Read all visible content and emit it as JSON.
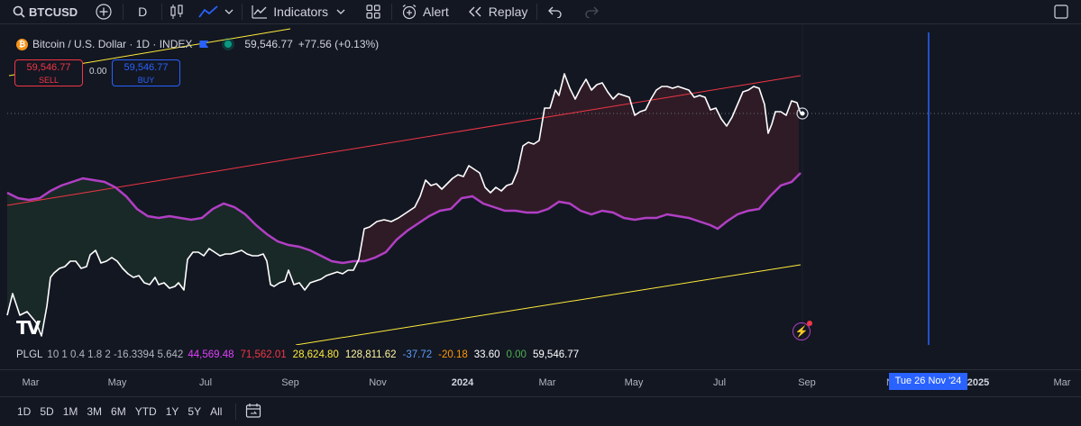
{
  "toolbar": {
    "symbol": "BTCUSD",
    "interval": "D",
    "indicators_label": "Indicators",
    "alert_label": "Alert",
    "replay_label": "Replay"
  },
  "legend": {
    "title": "Bitcoin / U.S. Dollar · 1D · INDEX",
    "price": "59,546.77",
    "change": "+77.56 (+0.13%)"
  },
  "trade": {
    "sell_price": "59,546.77",
    "sell_label": "SELL",
    "spread": "0.00",
    "buy_price": "59,546.77",
    "buy_label": "BUY"
  },
  "logo_text": "TV",
  "indicator": {
    "name": "PLGL",
    "params": "10 1 0.4 1.8 2 -16.3394 5.642",
    "values": [
      {
        "text": "44,569.48",
        "color": "#e040fb"
      },
      {
        "text": "71,562.01",
        "color": "#f23645"
      },
      {
        "text": "28,624.80",
        "color": "#ffeb3b"
      },
      {
        "text": "128,811.62",
        "color": "#fff59d"
      },
      {
        "text": "-37.72",
        "color": "#5b9cf6"
      },
      {
        "text": "-20.18",
        "color": "#ff9800"
      },
      {
        "text": "33.60",
        "color": "#ffffff"
      },
      {
        "text": "0.00",
        "color": "#4caf50"
      },
      {
        "text": "59,546.77",
        "color": "#ffffff"
      }
    ]
  },
  "time_axis": {
    "ticks": [
      {
        "label": "Mar",
        "bold": false
      },
      {
        "label": "May",
        "bold": false
      },
      {
        "label": "Jul",
        "bold": false
      },
      {
        "label": "Sep",
        "bold": false
      },
      {
        "label": "Nov",
        "bold": false
      },
      {
        "label": "2024",
        "bold": true
      },
      {
        "label": "Mar",
        "bold": false
      },
      {
        "label": "May",
        "bold": false
      },
      {
        "label": "Jul",
        "bold": false
      },
      {
        "label": "Sep",
        "bold": false
      },
      {
        "label": "No",
        "bold": false
      },
      {
        "label": "2025",
        "bold": true
      },
      {
        "label": "Mar",
        "bold": false
      }
    ],
    "crosshair_date": "Tue 26 Nov '24"
  },
  "ranges": [
    "1D",
    "5D",
    "1M",
    "3M",
    "6M",
    "YTD",
    "1Y",
    "5Y",
    "All"
  ],
  "colors": {
    "price_line": "#ffffff",
    "upper_channel": "#f23645",
    "lower_channel": "#ffeb3b",
    "mid_line": "#b13fc4",
    "crosshair": "#2962ff"
  }
}
